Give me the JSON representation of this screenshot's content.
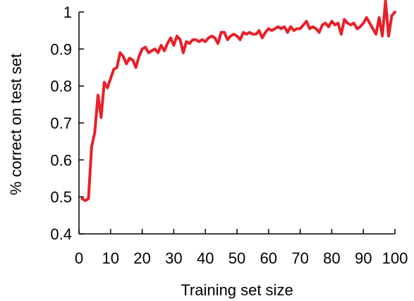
{
  "chart_data": {
    "type": "line",
    "title": "",
    "xlabel": "Training set size",
    "ylabel": "% correct on test set",
    "xlim": [
      0,
      100
    ],
    "ylim": [
      0.4,
      1
    ],
    "x_ticks": [
      "0",
      "10",
      "20",
      "30",
      "40",
      "50",
      "60",
      "70",
      "80",
      "90",
      "100"
    ],
    "y_ticks": [
      "0.4",
      "0.5",
      "0.6",
      "0.7",
      "0.8",
      "0.9",
      "1"
    ],
    "grid": false,
    "legend": "none",
    "series": [
      {
        "color": "#e8202a",
        "x": [
          1,
          2,
          3,
          4,
          5,
          6,
          7,
          8,
          9,
          10,
          11,
          12,
          13,
          14,
          15,
          16,
          17,
          18,
          19,
          20,
          21,
          22,
          23,
          24,
          25,
          26,
          27,
          28,
          29,
          30,
          31,
          32,
          33,
          34,
          35,
          36,
          37,
          38,
          39,
          40,
          41,
          42,
          43,
          44,
          45,
          46,
          47,
          48,
          49,
          50,
          51,
          52,
          53,
          54,
          55,
          56,
          57,
          58,
          59,
          60,
          61,
          62,
          63,
          64,
          65,
          66,
          67,
          68,
          69,
          70,
          71,
          72,
          73,
          74,
          75,
          76,
          77,
          78,
          79,
          80,
          81,
          82,
          83,
          84,
          85,
          86,
          87,
          88,
          89,
          90,
          91,
          92,
          93,
          94,
          95,
          96,
          97,
          98,
          99,
          100
        ],
        "values": [
          0.495,
          0.49,
          0.495,
          0.635,
          0.675,
          0.775,
          0.715,
          0.81,
          0.795,
          0.82,
          0.845,
          0.85,
          0.89,
          0.88,
          0.86,
          0.875,
          0.87,
          0.85,
          0.88,
          0.9,
          0.905,
          0.89,
          0.895,
          0.9,
          0.89,
          0.91,
          0.895,
          0.915,
          0.93,
          0.91,
          0.935,
          0.925,
          0.89,
          0.92,
          0.915,
          0.925,
          0.925,
          0.92,
          0.925,
          0.92,
          0.93,
          0.935,
          0.93,
          0.915,
          0.945,
          0.945,
          0.925,
          0.935,
          0.94,
          0.935,
          0.925,
          0.945,
          0.94,
          0.945,
          0.94,
          0.94,
          0.95,
          0.93,
          0.945,
          0.955,
          0.95,
          0.955,
          0.96,
          0.955,
          0.96,
          0.945,
          0.96,
          0.95,
          0.955,
          0.955,
          0.965,
          0.975,
          0.955,
          0.96,
          0.955,
          0.945,
          0.965,
          0.97,
          0.96,
          0.975,
          0.965,
          0.97,
          0.94,
          0.98,
          0.97,
          0.965,
          0.97,
          0.955,
          0.96,
          0.97,
          0.985,
          0.97,
          0.955,
          0.94,
          0.985,
          0.935,
          1.03,
          0.935,
          0.99,
          1.0
        ]
      }
    ]
  }
}
